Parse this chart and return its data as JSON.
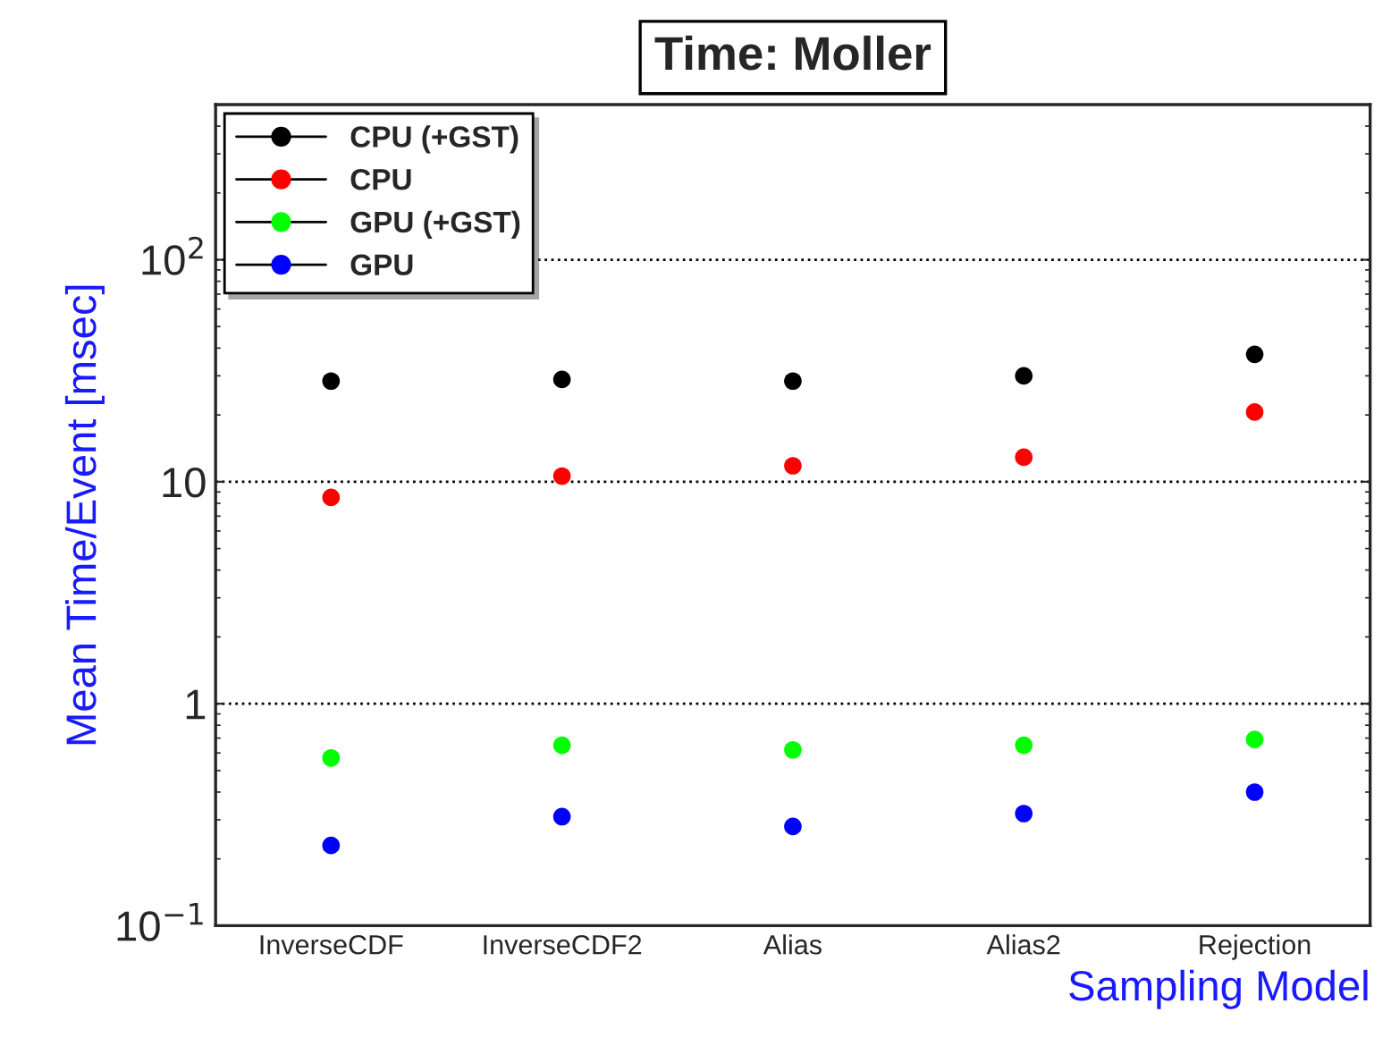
{
  "chart_data": {
    "type": "scatter",
    "title": "Time: Moller",
    "xlabel": "Sampling Model",
    "ylabel": "Mean Time/Event [msec]",
    "categories": [
      "InverseCDF",
      "InverseCDF2",
      "Alias",
      "Alias2",
      "Rejection"
    ],
    "series": [
      {
        "name": "CPU (+GST)",
        "color": "#000000",
        "values": [
          28.4,
          28.9,
          28.4,
          30,
          37.5
        ]
      },
      {
        "name": "CPU",
        "color": "#ff0000",
        "values": [
          8.5,
          10.6,
          11.8,
          12.9,
          20.6
        ]
      },
      {
        "name": "GPU (+GST)",
        "color": "#00ff00",
        "values": [
          0.57,
          0.65,
          0.62,
          0.65,
          0.69
        ]
      },
      {
        "name": "GPU",
        "color": "#0000ff",
        "values": [
          0.23,
          0.31,
          0.28,
          0.32,
          0.4
        ]
      }
    ],
    "log": "y",
    "ylim": [
      0.1,
      500
    ],
    "yticks": [
      {
        "value": 0.1,
        "label": "10$^{−1}$"
      },
      1,
      10,
      {
        "value": 100,
        "label": "10$^{2}$"
      }
    ],
    "grid": "y",
    "legend": "top left",
    "marker": "circle"
  }
}
